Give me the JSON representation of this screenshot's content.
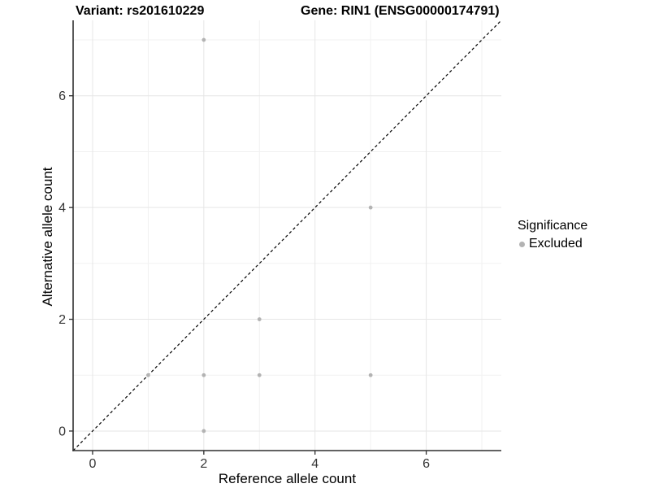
{
  "chart_data": {
    "type": "scatter",
    "titles": {
      "left": "Variant: rs201610229",
      "right": "Gene: RIN1 (ENSG00000174791)"
    },
    "xlabel": "Reference allele count",
    "ylabel": "Alternative allele count",
    "xlim": [
      -0.35,
      7.35
    ],
    "ylim": [
      -0.35,
      7.35
    ],
    "x_major_ticks": [
      0,
      2,
      4,
      6
    ],
    "y_major_ticks": [
      0,
      2,
      4,
      6
    ],
    "x_minor_gridlines": [
      1,
      3,
      5,
      7
    ],
    "y_minor_gridlines": [
      1,
      3,
      5,
      7
    ],
    "grid": "major+minor",
    "reference_line": {
      "kind": "y=x",
      "style": "dashed",
      "color": "#000000"
    },
    "series": [
      {
        "name": "Excluded",
        "color": "#b3b3b3",
        "points": [
          [
            1,
            1
          ],
          [
            2,
            0
          ],
          [
            2,
            1
          ],
          [
            2,
            7
          ],
          [
            3,
            1
          ],
          [
            3,
            2
          ],
          [
            5,
            1
          ],
          [
            5,
            4
          ]
        ]
      }
    ],
    "legend": {
      "title": "Significance",
      "position": "right",
      "items": [
        {
          "label": "Excluded",
          "color": "#b3b3b3",
          "marker": "circle"
        }
      ]
    },
    "colors": {
      "background": "#ffffff",
      "major_grid": "#e6e6e6",
      "minor_grid": "#f1f1f1",
      "axis_line": "#2f2f2f",
      "tick_label": "#333333",
      "point": "#b3b3b3"
    }
  }
}
